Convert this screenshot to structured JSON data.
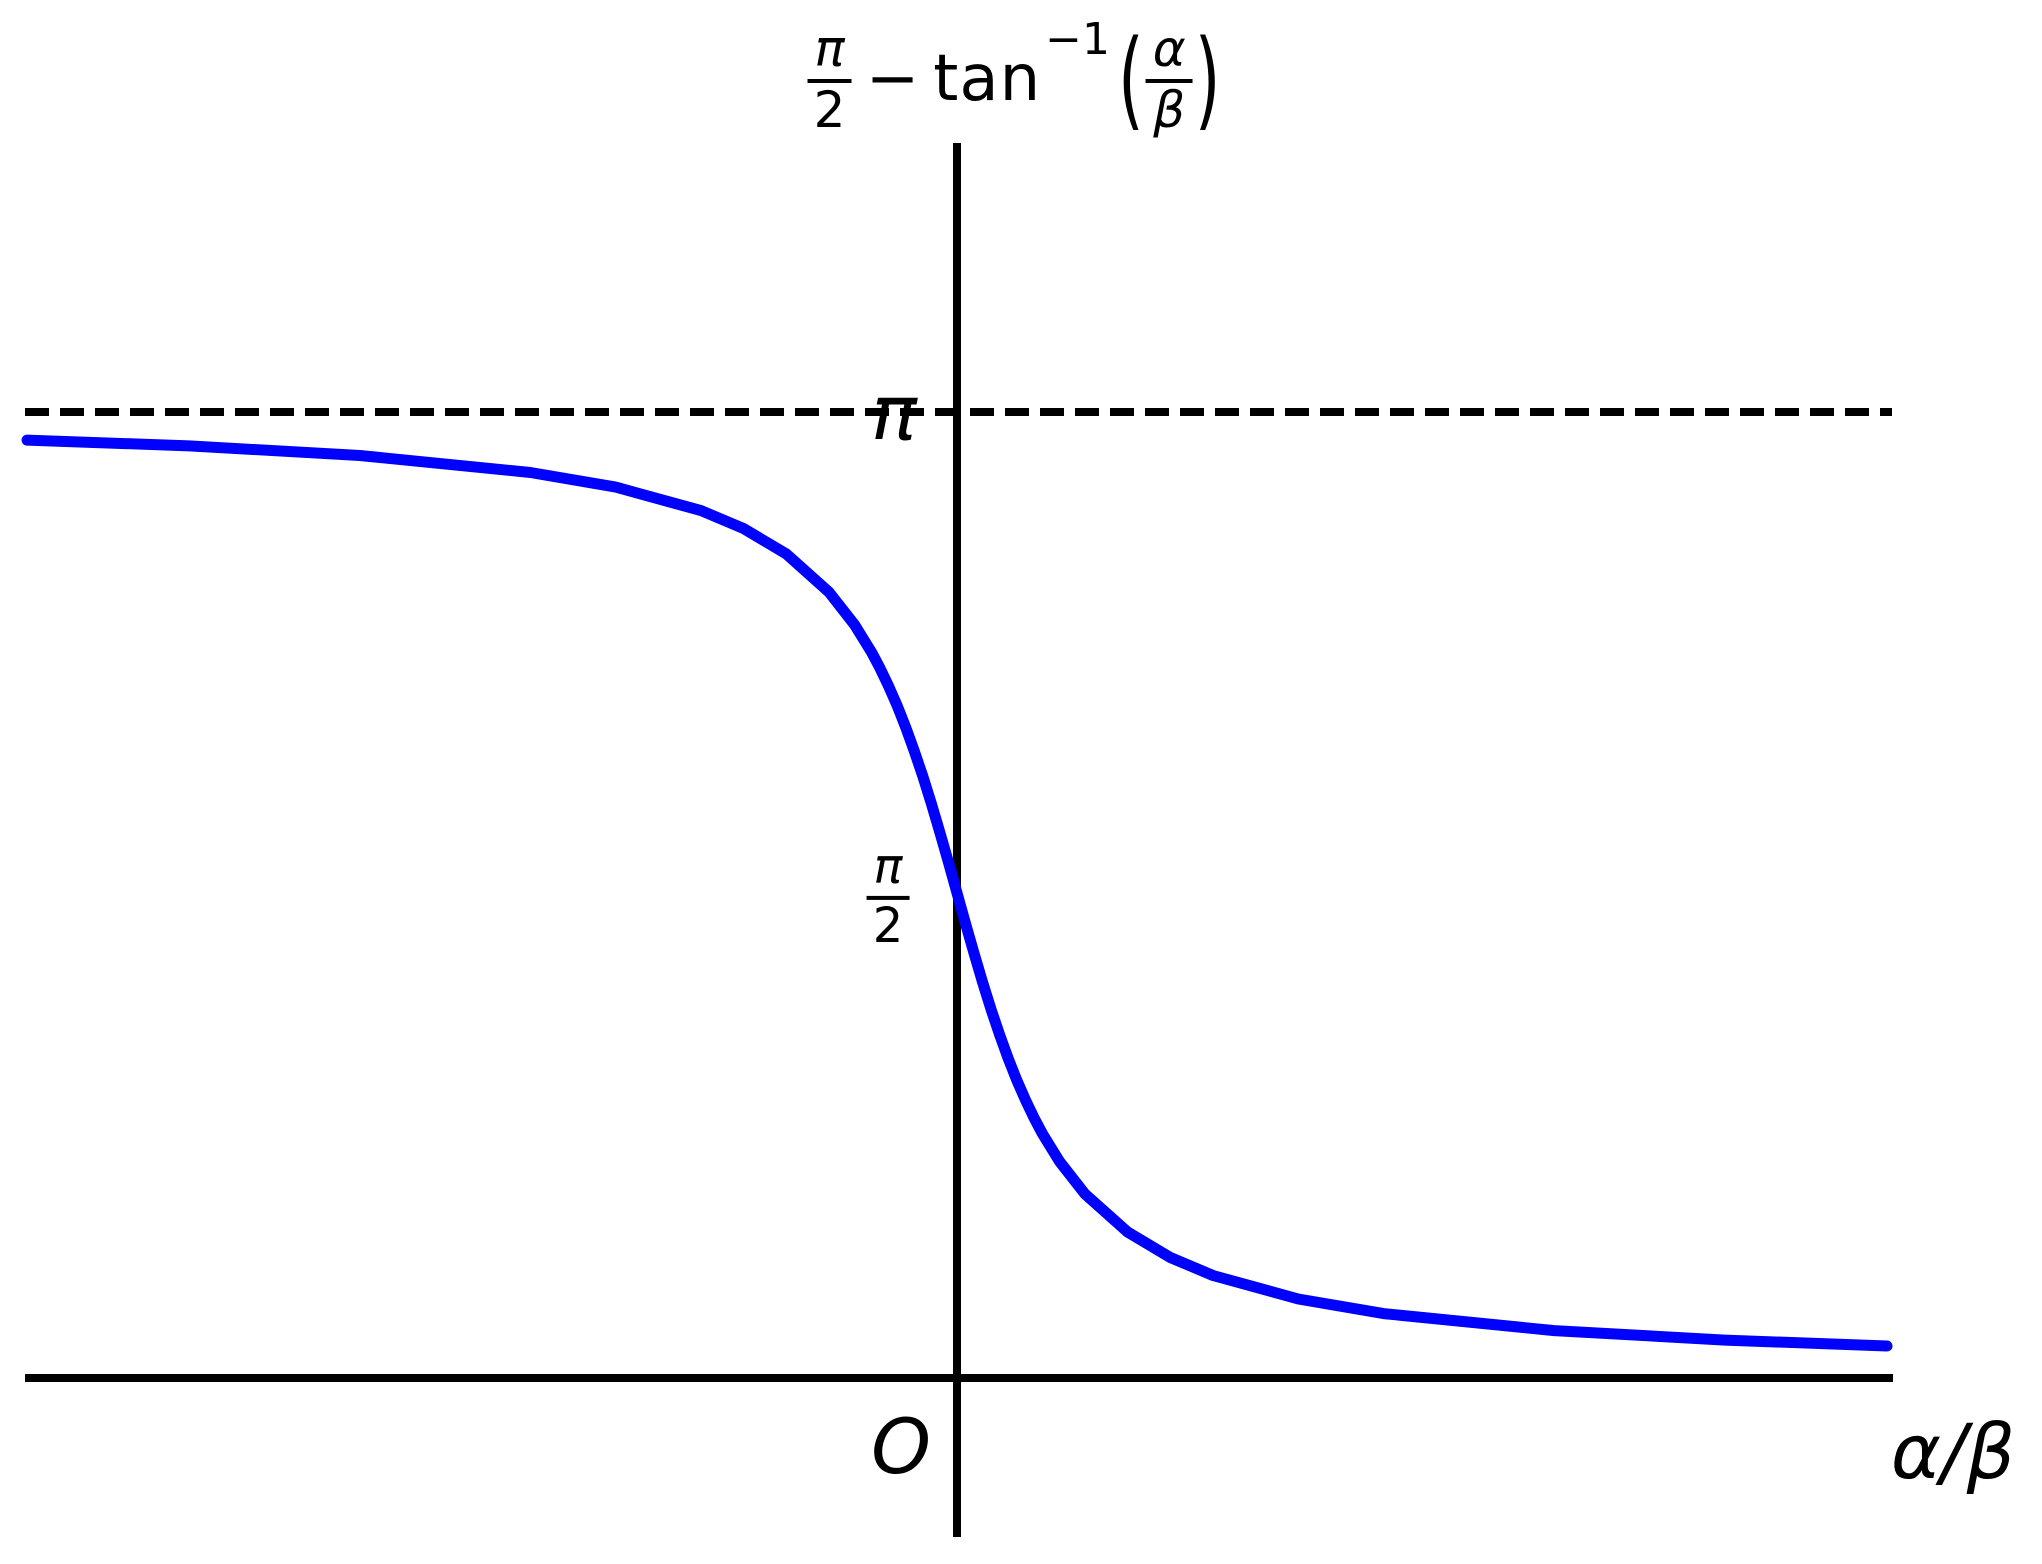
{
  "figure": {
    "background": "#ffffff",
    "title": {
      "frac1_num": "π",
      "frac1_den": "2",
      "minus_sign": "−",
      "function_name": "tan",
      "superscript": "−1",
      "open_paren": "(",
      "frac2_num": "α",
      "frac2_den": "β",
      "close_paren": ")"
    },
    "labels": {
      "asymptote": "π",
      "intercept_num": "π",
      "intercept_den": "2",
      "origin": "O",
      "x_axis": "α/β"
    },
    "colors": {
      "curve": "#0000ff",
      "axes": "#000000",
      "background": "#ffffff"
    }
  },
  "chart_data": {
    "type": "line",
    "title": "π/2 − tan⁻¹(α/β)",
    "xlabel": "α/β",
    "ylabel": "π/2 − tan⁻¹(α/β)",
    "function": "y = π/2 − arctan(x)",
    "xlim": [
      -10.9,
      10.9
    ],
    "ylim": [
      0,
      3.4
    ],
    "grid": false,
    "legend": "none",
    "annotations": [
      {
        "type": "horizontal-dashed-asymptote",
        "y": 3.14159,
        "label": "π"
      },
      {
        "type": "y-intercept",
        "y": 1.5708,
        "label": "π/2"
      },
      {
        "type": "origin",
        "x": 0,
        "y": 0,
        "label": "O"
      }
    ],
    "series": [
      {
        "name": "π/2 − tan⁻¹(α/β)",
        "color": "#0000ff",
        "x": [
          -10.9,
          -9,
          -7,
          -5,
          -4,
          -3,
          -2.5,
          -2,
          -1.5,
          -1.2,
          -1,
          -0.9,
          -0.8,
          -0.7,
          -0.6,
          -0.5,
          -0.4,
          -0.3,
          -0.2,
          -0.1,
          0,
          0.1,
          0.2,
          0.3,
          0.4,
          0.5,
          0.6,
          0.7,
          0.8,
          0.9,
          1,
          1.2,
          1.5,
          2,
          2.5,
          3,
          4,
          5,
          7,
          9,
          10.9
        ],
        "y": [
          3.0501,
          3.0309,
          2.9997,
          2.9442,
          2.8966,
          2.8198,
          2.7611,
          2.6779,
          2.5536,
          2.4469,
          2.3562,
          2.3036,
          2.2455,
          2.1815,
          2.1112,
          2.0344,
          1.9513,
          1.8623,
          1.7682,
          1.6705,
          1.5708,
          1.4711,
          1.3734,
          1.2793,
          1.1903,
          1.1071,
          1.0304,
          0.9601,
          0.8961,
          0.838,
          0.7854,
          0.6947,
          0.588,
          0.4636,
          0.3805,
          0.3218,
          0.245,
          0.1974,
          0.1419,
          0.1107,
          0.0915
        ]
      }
    ]
  }
}
